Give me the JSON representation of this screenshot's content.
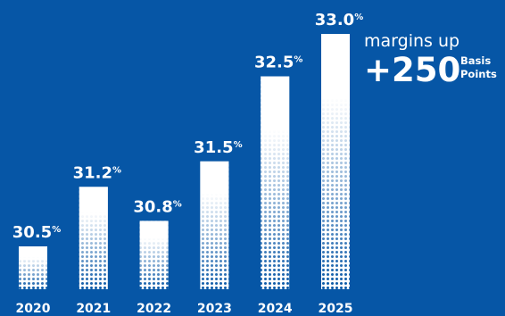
{
  "colors": {
    "background": "#0656A6",
    "bar": "#FFFFFF",
    "text": "#FFFFFF"
  },
  "chart_data": {
    "type": "bar",
    "categories": [
      "2020",
      "2021",
      "2022",
      "2023",
      "2024",
      "2025"
    ],
    "values": [
      30.5,
      31.2,
      30.8,
      31.5,
      32.5,
      33.0
    ],
    "value_labels": [
      "30.5",
      "31.2",
      "30.8",
      "31.5",
      "32.5",
      "33.0"
    ],
    "value_suffix": "%",
    "title": "",
    "xlabel": "",
    "ylabel": "",
    "ylim": [
      30.0,
      33.0
    ],
    "grid": false,
    "bar_fill": "white fading to dotted pattern toward the bottom"
  },
  "annotation": {
    "line1": "margins up",
    "big": "+250",
    "small1": "Basis",
    "small2": "Points"
  }
}
